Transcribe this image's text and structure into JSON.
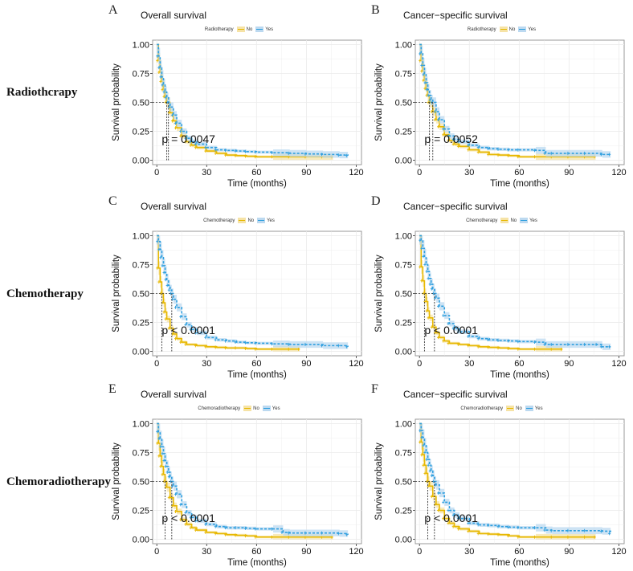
{
  "row_labels": [
    "Radiothcrapy",
    "Chemotherapy",
    "Chemoradiotherapy"
  ],
  "colors": {
    "no": "#E7B800",
    "yes": "#2E9FDF",
    "no_ci": "#F6E3A6",
    "yes_ci": "#BCD9F0",
    "grid": "#EBEBEB",
    "frame": "#999999"
  },
  "chart_data": [
    {
      "type": "line",
      "panel": "A",
      "title": "Overall survival",
      "legend_title": "Radiotherapy",
      "legend": [
        "No",
        "Yes"
      ],
      "xlabel": "Time (months)",
      "ylabel": "Survival probability",
      "xlim": [
        0,
        120
      ],
      "ylim": [
        0,
        1
      ],
      "xticks": [
        "0",
        "30",
        "60",
        "90",
        "120"
      ],
      "yticks": [
        "0.00",
        "0.25",
        "0.50",
        "0.75",
        "1.00"
      ],
      "annotation": "p = 0.0047",
      "medians": [
        6,
        7
      ],
      "series": [
        {
          "name": "No",
          "x": [
            0,
            1,
            2,
            3,
            4,
            5,
            6,
            8,
            10,
            12,
            15,
            18,
            21,
            24,
            30,
            36,
            42,
            48,
            54,
            60,
            70,
            80,
            90,
            100,
            106
          ],
          "y": [
            1,
            0.86,
            0.76,
            0.68,
            0.61,
            0.55,
            0.5,
            0.41,
            0.34,
            0.28,
            0.21,
            0.16,
            0.13,
            0.11,
            0.08,
            0.06,
            0.045,
            0.04,
            0.035,
            0.03,
            0.03,
            0.03,
            0.03,
            0.03,
            0.03
          ]
        },
        {
          "name": "Yes",
          "x": [
            0,
            1,
            2,
            3,
            4,
            5,
            6,
            7,
            8,
            10,
            12,
            15,
            18,
            21,
            24,
            30,
            36,
            42,
            48,
            54,
            60,
            70,
            80,
            90,
            100,
            110,
            115
          ],
          "y": [
            1,
            0.9,
            0.8,
            0.72,
            0.65,
            0.59,
            0.54,
            0.5,
            0.46,
            0.39,
            0.32,
            0.25,
            0.19,
            0.16,
            0.14,
            0.11,
            0.09,
            0.085,
            0.08,
            0.075,
            0.07,
            0.065,
            0.06,
            0.055,
            0.05,
            0.045,
            0.04
          ]
        }
      ]
    },
    {
      "type": "line",
      "panel": "B",
      "title": "Cancer−specific survival",
      "legend_title": "Radiotherapy",
      "legend": [
        "No",
        "Yes"
      ],
      "xlabel": "Time (months)",
      "ylabel": "Survival probability",
      "xlim": [
        0,
        120
      ],
      "ylim": [
        0,
        1
      ],
      "xticks": [
        "0",
        "30",
        "60",
        "90",
        "120"
      ],
      "yticks": [
        "0.00",
        "0.25",
        "0.50",
        "0.75",
        "1.00"
      ],
      "annotation": "p = 0.0052",
      "medians": [
        6,
        8
      ],
      "series": [
        {
          "name": "No",
          "x": [
            0,
            1,
            2,
            3,
            4,
            5,
            6,
            8,
            10,
            12,
            15,
            18,
            21,
            24,
            30,
            36,
            42,
            48,
            54,
            60,
            70,
            80,
            90,
            100,
            106
          ],
          "y": [
            1,
            0.86,
            0.77,
            0.69,
            0.62,
            0.56,
            0.5,
            0.42,
            0.35,
            0.29,
            0.22,
            0.17,
            0.14,
            0.12,
            0.09,
            0.07,
            0.05,
            0.045,
            0.04,
            0.03,
            0.03,
            0.03,
            0.03,
            0.03,
            0.03
          ]
        },
        {
          "name": "Yes",
          "x": [
            0,
            1,
            2,
            3,
            4,
            5,
            6,
            7,
            8,
            10,
            12,
            15,
            18,
            21,
            24,
            30,
            36,
            42,
            48,
            54,
            60,
            70,
            76,
            80,
            90,
            100,
            110,
            115
          ],
          "y": [
            1,
            0.92,
            0.82,
            0.74,
            0.67,
            0.61,
            0.56,
            0.52,
            0.5,
            0.42,
            0.35,
            0.27,
            0.21,
            0.18,
            0.16,
            0.13,
            0.11,
            0.1,
            0.095,
            0.09,
            0.09,
            0.085,
            0.06,
            0.06,
            0.06,
            0.06,
            0.05,
            0.05
          ]
        }
      ]
    },
    {
      "type": "line",
      "panel": "C",
      "title": "Overall survival",
      "legend_title": "Chemotherapy",
      "legend": [
        "No",
        "Yes"
      ],
      "xlabel": "Time (months)",
      "ylabel": "Survival probability",
      "xlim": [
        0,
        120
      ],
      "ylim": [
        0,
        1
      ],
      "xticks": [
        "0",
        "30",
        "60",
        "90",
        "120"
      ],
      "yticks": [
        "0.00",
        "0.25",
        "0.50",
        "0.75",
        "1.00"
      ],
      "annotation": "p < 0.0001",
      "medians": [
        3,
        9
      ],
      "series": [
        {
          "name": "No",
          "x": [
            0,
            1,
            2,
            3,
            4,
            5,
            6,
            8,
            10,
            12,
            15,
            18,
            24,
            30,
            36,
            42,
            48,
            54,
            60,
            70,
            80,
            86
          ],
          "y": [
            1,
            0.72,
            0.6,
            0.5,
            0.42,
            0.34,
            0.28,
            0.2,
            0.15,
            0.11,
            0.08,
            0.06,
            0.05,
            0.04,
            0.035,
            0.03,
            0.03,
            0.025,
            0.02,
            0.02,
            0.02,
            0.02
          ]
        },
        {
          "name": "Yes",
          "x": [
            0,
            1,
            2,
            3,
            4,
            5,
            6,
            7,
            8,
            9,
            10,
            12,
            15,
            18,
            21,
            24,
            30,
            36,
            42,
            48,
            54,
            60,
            70,
            80,
            90,
            100,
            110,
            115
          ],
          "y": [
            1,
            0.95,
            0.88,
            0.81,
            0.74,
            0.68,
            0.62,
            0.57,
            0.53,
            0.5,
            0.45,
            0.38,
            0.3,
            0.23,
            0.19,
            0.16,
            0.12,
            0.1,
            0.09,
            0.08,
            0.075,
            0.07,
            0.065,
            0.06,
            0.06,
            0.05,
            0.05,
            0.04
          ]
        }
      ]
    },
    {
      "type": "line",
      "panel": "D",
      "title": "Cancer−specific survival",
      "legend_title": "Chemotherapy",
      "legend": [
        "No",
        "Yes"
      ],
      "xlabel": "Time (months)",
      "ylabel": "Survival probability",
      "xlim": [
        0,
        120
      ],
      "ylim": [
        0,
        1
      ],
      "xticks": [
        "0",
        "30",
        "60",
        "90",
        "120"
      ],
      "yticks": [
        "0.00",
        "0.25",
        "0.50",
        "0.75",
        "1.00"
      ],
      "annotation": "p < 0.0001",
      "medians": [
        3,
        9
      ],
      "series": [
        {
          "name": "No",
          "x": [
            0,
            1,
            2,
            3,
            4,
            5,
            6,
            8,
            10,
            12,
            15,
            18,
            24,
            30,
            36,
            42,
            48,
            54,
            60,
            70,
            80,
            86
          ],
          "y": [
            1,
            0.73,
            0.61,
            0.5,
            0.43,
            0.35,
            0.29,
            0.21,
            0.16,
            0.12,
            0.09,
            0.07,
            0.06,
            0.05,
            0.04,
            0.035,
            0.03,
            0.025,
            0.02,
            0.02,
            0.02,
            0.02
          ]
        },
        {
          "name": "Yes",
          "x": [
            0,
            1,
            2,
            3,
            4,
            5,
            6,
            7,
            8,
            9,
            10,
            12,
            15,
            18,
            21,
            24,
            30,
            36,
            42,
            48,
            54,
            60,
            70,
            76,
            80,
            90,
            100,
            107,
            110,
            115
          ],
          "y": [
            1,
            0.96,
            0.89,
            0.82,
            0.75,
            0.69,
            0.63,
            0.58,
            0.54,
            0.5,
            0.46,
            0.39,
            0.31,
            0.24,
            0.2,
            0.17,
            0.13,
            0.11,
            0.1,
            0.095,
            0.09,
            0.085,
            0.08,
            0.06,
            0.06,
            0.06,
            0.06,
            0.06,
            0.04,
            0.04
          ]
        }
      ]
    },
    {
      "type": "line",
      "panel": "E",
      "title": "Overall survival",
      "legend_title": "Chemoradiotherapy",
      "legend": [
        "No",
        "Yes"
      ],
      "xlabel": "Time (months)",
      "ylabel": "Survival probability",
      "xlim": [
        0,
        120
      ],
      "ylim": [
        0,
        1
      ],
      "xticks": [
        "0",
        "30",
        "60",
        "90",
        "120"
      ],
      "yticks": [
        "0.00",
        "0.25",
        "0.50",
        "0.75",
        "1.00"
      ],
      "annotation": "p < 0.0001",
      "medians": [
        5,
        9
      ],
      "series": [
        {
          "name": "No",
          "x": [
            0,
            1,
            2,
            3,
            4,
            5,
            6,
            8,
            10,
            12,
            15,
            18,
            21,
            24,
            30,
            36,
            42,
            48,
            54,
            60,
            70,
            80,
            90,
            100,
            106
          ],
          "y": [
            1,
            0.83,
            0.72,
            0.63,
            0.56,
            0.5,
            0.45,
            0.36,
            0.29,
            0.24,
            0.17,
            0.13,
            0.1,
            0.08,
            0.06,
            0.05,
            0.04,
            0.035,
            0.03,
            0.02,
            0.02,
            0.02,
            0.02,
            0.02,
            0.02
          ]
        },
        {
          "name": "Yes",
          "x": [
            0,
            1,
            2,
            3,
            4,
            5,
            6,
            7,
            8,
            9,
            10,
            12,
            15,
            18,
            21,
            24,
            30,
            36,
            42,
            48,
            54,
            60,
            70,
            76,
            80,
            90,
            100,
            110,
            115
          ],
          "y": [
            1,
            0.93,
            0.87,
            0.8,
            0.74,
            0.68,
            0.63,
            0.58,
            0.54,
            0.5,
            0.46,
            0.39,
            0.3,
            0.23,
            0.19,
            0.16,
            0.13,
            0.11,
            0.1,
            0.1,
            0.095,
            0.09,
            0.09,
            0.06,
            0.055,
            0.055,
            0.055,
            0.05,
            0.04
          ]
        }
      ]
    },
    {
      "type": "line",
      "panel": "F",
      "title": "Cancer−specific survival",
      "legend_title": "Chemoradiotherapy",
      "legend": [
        "No",
        "Yes"
      ],
      "xlabel": "Time (months)",
      "ylabel": "Survival probability",
      "xlim": [
        0,
        120
      ],
      "ylim": [
        0,
        1
      ],
      "xticks": [
        "0",
        "30",
        "60",
        "90",
        "120"
      ],
      "yticks": [
        "0.00",
        "0.25",
        "0.50",
        "0.75",
        "1.00"
      ],
      "annotation": "p < 0.0001",
      "medians": [
        5,
        9
      ],
      "series": [
        {
          "name": "No",
          "x": [
            0,
            1,
            2,
            3,
            4,
            5,
            6,
            8,
            10,
            12,
            15,
            18,
            21,
            24,
            30,
            36,
            42,
            48,
            54,
            60,
            70,
            80,
            90,
            100,
            106
          ],
          "y": [
            1,
            0.84,
            0.73,
            0.64,
            0.57,
            0.5,
            0.46,
            0.37,
            0.3,
            0.25,
            0.18,
            0.14,
            0.11,
            0.09,
            0.07,
            0.05,
            0.045,
            0.04,
            0.03,
            0.02,
            0.02,
            0.02,
            0.02,
            0.02,
            0.02
          ]
        },
        {
          "name": "Yes",
          "x": [
            0,
            1,
            2,
            3,
            4,
            5,
            6,
            7,
            8,
            9,
            10,
            12,
            15,
            18,
            21,
            24,
            30,
            36,
            42,
            48,
            54,
            60,
            70,
            76,
            80,
            90,
            100,
            110,
            115
          ],
          "y": [
            1,
            0.94,
            0.88,
            0.81,
            0.75,
            0.69,
            0.64,
            0.59,
            0.55,
            0.5,
            0.47,
            0.4,
            0.32,
            0.25,
            0.21,
            0.18,
            0.14,
            0.125,
            0.12,
            0.11,
            0.105,
            0.1,
            0.1,
            0.08,
            0.075,
            0.075,
            0.075,
            0.07,
            0.05
          ]
        }
      ]
    }
  ]
}
